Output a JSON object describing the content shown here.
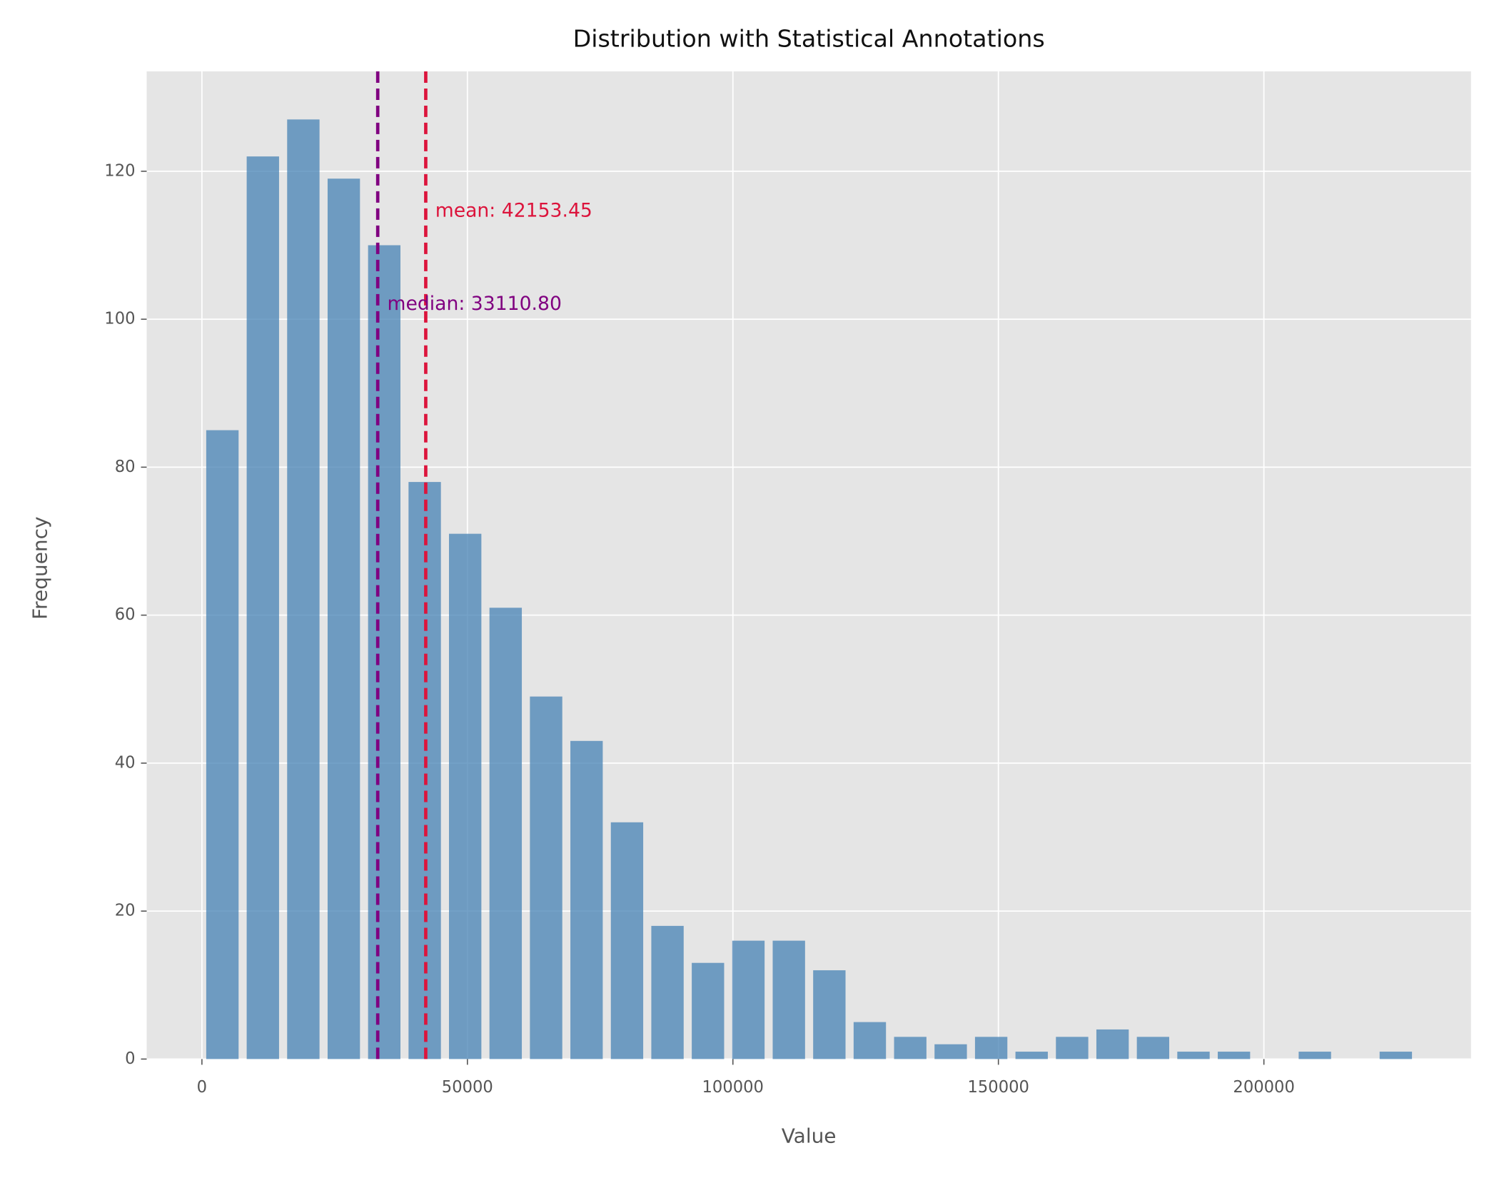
{
  "chart_data": {
    "type": "histogram",
    "title": "Distribution with Statistical Annotations",
    "xlabel": "Value",
    "ylabel": "Frequency",
    "bins": [
      50,
      7670,
      15290,
      22910,
      30530,
      38150,
      45770,
      53390,
      61010,
      68630,
      76250,
      83870,
      91490,
      99110,
      106730,
      114350,
      121970,
      129590,
      137210,
      144830,
      152450,
      160070,
      167690,
      175310,
      182930,
      190550,
      198170,
      205790,
      213410,
      221030,
      228650
    ],
    "values": [
      85,
      122,
      127,
      119,
      110,
      78,
      71,
      61,
      49,
      43,
      32,
      18,
      13,
      16,
      16,
      12,
      5,
      3,
      2,
      3,
      1,
      3,
      4,
      3,
      1,
      1,
      0,
      1,
      0,
      1
    ],
    "color": "#4682b4",
    "xlim": [
      -10400,
      239000
    ],
    "ylim": [
      0,
      133.5
    ],
    "xticks": [
      0,
      50000,
      100000,
      150000,
      200000
    ],
    "yticks": [
      0,
      20,
      40,
      60,
      80,
      100,
      120
    ],
    "grid": true,
    "vlines": [
      {
        "value": 42153.45,
        "label": "mean: 42153.45",
        "color": "#dc143c"
      },
      {
        "value": 33110.8,
        "label": "median: 33110.80",
        "color": "#800080"
      }
    ]
  }
}
